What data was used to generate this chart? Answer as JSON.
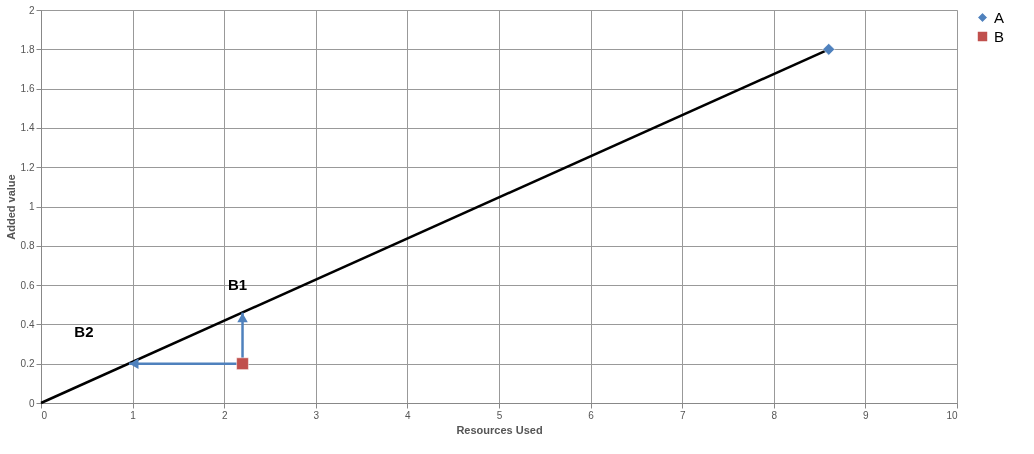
{
  "chart_data": {
    "type": "scatter",
    "xlabel": "Resources Used",
    "ylabel": "Added value",
    "xlim": [
      0,
      10
    ],
    "xticks": [
      0,
      1,
      2,
      3,
      4,
      5,
      6,
      7,
      8,
      9,
      10
    ],
    "ylim": [
      0,
      2
    ],
    "yticks": [
      0,
      0.2,
      0.4,
      0.6,
      0.8,
      1,
      1.2,
      1.4,
      1.6,
      1.8,
      2
    ],
    "grid": true,
    "legend": "right",
    "series": [
      {
        "name": "A",
        "color": "#4f81bd",
        "marker": "diamond",
        "x": [
          8.6
        ],
        "values": [
          1.8
        ]
      },
      {
        "name": "B",
        "color": "#c0504d",
        "marker": "square",
        "x": [
          2.2
        ],
        "values": [
          0.2
        ]
      },
      {
        "type": "line",
        "color": "#000000",
        "marker": "none",
        "x": [
          0,
          8.6
        ],
        "values": [
          0,
          1.8
        ]
      }
    ],
    "annotations": [
      {
        "text": "B1",
        "x": 2.2,
        "y": 0.46
      },
      {
        "text": "B2",
        "x": 0.96,
        "y": 0.2
      }
    ]
  }
}
